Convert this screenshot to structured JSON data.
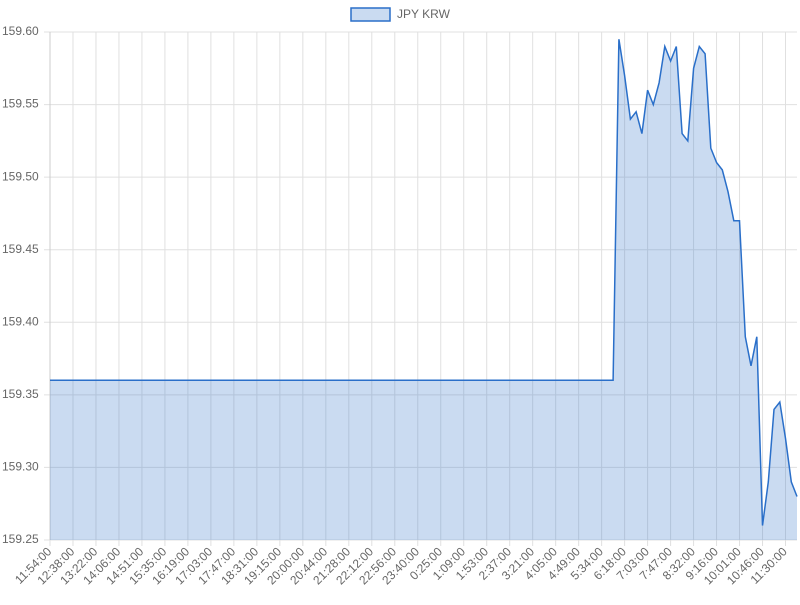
{
  "chart_data": {
    "type": "line",
    "categories": [
      "11:54:00",
      null,
      null,
      null,
      "12:38:00",
      null,
      null,
      null,
      "13:22:00",
      null,
      null,
      null,
      "14:06:00",
      null,
      null,
      null,
      "14:51:00",
      null,
      null,
      null,
      "15:35:00",
      null,
      null,
      null,
      "16:19:00",
      null,
      null,
      null,
      "17:03:00",
      null,
      null,
      null,
      "17:47:00",
      null,
      null,
      null,
      "18:31:00",
      null,
      null,
      null,
      "19:15:00",
      null,
      null,
      null,
      "20:00:00",
      null,
      null,
      null,
      "20:44:00",
      null,
      null,
      null,
      "21:28:00",
      null,
      null,
      null,
      "22:12:00",
      null,
      null,
      null,
      "22:56:00",
      null,
      null,
      null,
      "23:40:00",
      null,
      null,
      null,
      "0:25:00",
      null,
      null,
      null,
      "1:09:00",
      null,
      null,
      null,
      "1:53:00",
      null,
      null,
      null,
      "2:37:00",
      null,
      null,
      null,
      "3:21:00",
      null,
      null,
      null,
      "4:05:00",
      null,
      null,
      null,
      "4:49:00",
      null,
      null,
      null,
      "5:34:00",
      null,
      null,
      null,
      "6:18:00",
      null,
      null,
      null,
      "7:03:00",
      null,
      null,
      null,
      "7:47:00",
      null,
      null,
      null,
      "8:32:00",
      null,
      null,
      null,
      "9:16:00",
      null,
      null,
      null,
      "10:01:00",
      null,
      null,
      null,
      "10:46:00",
      null,
      null,
      null,
      "11:30:00",
      null,
      null
    ],
    "series": [
      {
        "name": "JPY KRW",
        "color": "#2a6fc9",
        "values": [
          159.36,
          159.36,
          159.36,
          159.36,
          159.36,
          159.36,
          159.36,
          159.36,
          159.36,
          159.36,
          159.36,
          159.36,
          159.36,
          159.36,
          159.36,
          159.36,
          159.36,
          159.36,
          159.36,
          159.36,
          159.36,
          159.36,
          159.36,
          159.36,
          159.36,
          159.36,
          159.36,
          159.36,
          159.36,
          159.36,
          159.36,
          159.36,
          159.36,
          159.36,
          159.36,
          159.36,
          159.36,
          159.36,
          159.36,
          159.36,
          159.36,
          159.36,
          159.36,
          159.36,
          159.36,
          159.36,
          159.36,
          159.36,
          159.36,
          159.36,
          159.36,
          159.36,
          159.36,
          159.36,
          159.36,
          159.36,
          159.36,
          159.36,
          159.36,
          159.36,
          159.36,
          159.36,
          159.36,
          159.36,
          159.36,
          159.36,
          159.36,
          159.36,
          159.36,
          159.36,
          159.36,
          159.36,
          159.36,
          159.36,
          159.36,
          159.36,
          159.36,
          159.36,
          159.36,
          159.36,
          159.36,
          159.36,
          159.36,
          159.36,
          159.36,
          159.36,
          159.36,
          159.36,
          159.36,
          159.36,
          159.36,
          159.36,
          159.36,
          159.36,
          159.36,
          159.36,
          159.36,
          159.36,
          159.36,
          159.595,
          159.57,
          159.54,
          159.545,
          159.53,
          159.56,
          159.55,
          159.565,
          159.59,
          159.58,
          159.59,
          159.53,
          159.525,
          159.575,
          159.59,
          159.585,
          159.52,
          159.51,
          159.505,
          159.49,
          159.47,
          159.47,
          159.39,
          159.37,
          159.39,
          159.26,
          159.29,
          159.34,
          159.345,
          159.32,
          159.29,
          159.28
        ]
      }
    ],
    "ylim": [
      159.25,
      159.6
    ],
    "yticks": [
      159.25,
      {
        "value": 159.3,
        "label": "159.30"
      },
      159.35,
      {
        "value": 159.4,
        "label": "159.40"
      },
      159.45,
      {
        "value": 159.5,
        "label": "159.50"
      },
      159.55,
      {
        "value": 159.6,
        "label": "159.60"
      }
    ],
    "grid": true
  }
}
